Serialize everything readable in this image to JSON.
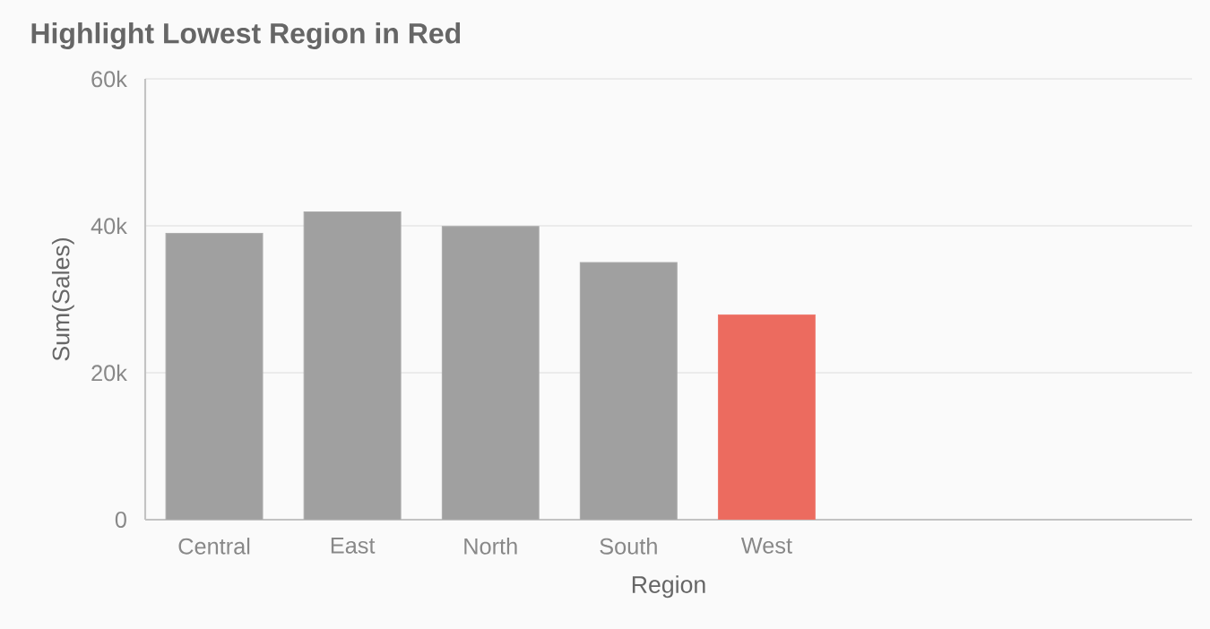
{
  "chart_data": {
    "type": "bar",
    "title": "Highlight Lowest Region in Red",
    "xlabel": "Region",
    "ylabel": "Sum(Sales)",
    "categories": [
      "Central",
      "East",
      "North",
      "South",
      "West"
    ],
    "values": [
      39000,
      41900,
      39900,
      35000,
      27900
    ],
    "colors": [
      "#a0a0a0",
      "#a0a0a0",
      "#a0a0a0",
      "#a0a0a0",
      "#ec6b5f"
    ],
    "ylim": [
      0,
      60000
    ],
    "yticks": [
      {
        "value": 0,
        "label": "0"
      },
      {
        "value": 20000,
        "label": "20k"
      },
      {
        "value": 40000,
        "label": "40k"
      },
      {
        "value": 60000,
        "label": "60k"
      }
    ],
    "grid": "y"
  }
}
